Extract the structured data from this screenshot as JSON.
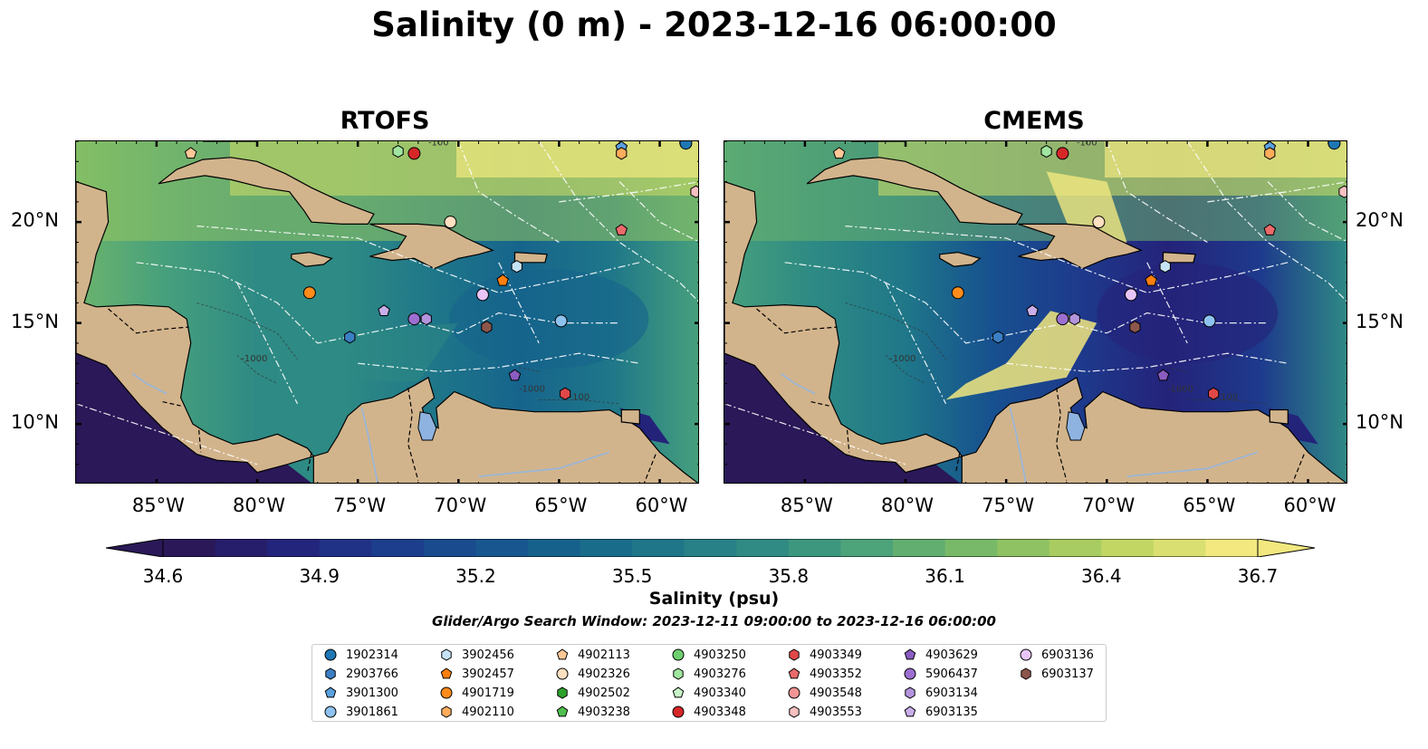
{
  "title": "Salinity (0 m) - 2023-12-16 06:00:00",
  "panels": [
    {
      "title": "RTOFS",
      "variant": "rtofs"
    },
    {
      "title": "CMEMS",
      "variant": "cmems"
    }
  ],
  "map": {
    "lon_ticks": [
      "85°W",
      "80°W",
      "75°W",
      "70°W",
      "65°W",
      "60°W"
    ],
    "lat_ticks": [
      "20°N",
      "15°N",
      "10°N"
    ],
    "lon_range": [
      -89,
      -58
    ],
    "lat_range": [
      7,
      24
    ],
    "land_color": "#d2b48c",
    "lake_color": "#8fb3e0",
    "contour_labels": [
      "-100",
      "-1000"
    ]
  },
  "colorbar": {
    "label": "Salinity (psu)",
    "min": 34.6,
    "max": 36.7,
    "ticks": [
      "34.6",
      "34.9",
      "35.2",
      "35.5",
      "35.8",
      "36.1",
      "36.4",
      "36.7"
    ],
    "colormap": "haline",
    "extend": "both"
  },
  "search_window": "Glider/Argo Search Window: 2023-12-11 09:00:00 to 2023-12-16 06:00:00",
  "legend": [
    {
      "id": "1902314",
      "marker": "circle",
      "color": "#1f77b4"
    },
    {
      "id": "2903766",
      "marker": "hexagon",
      "color": "#3b7fc4"
    },
    {
      "id": "3901300",
      "marker": "pentagon",
      "color": "#5aa0e0"
    },
    {
      "id": "3901861",
      "marker": "circle",
      "color": "#8ec3ef"
    },
    {
      "id": "3902456",
      "marker": "hexagon",
      "color": "#c6e4f7"
    },
    {
      "id": "3902457",
      "marker": "pentagon",
      "color": "#ff7f0e"
    },
    {
      "id": "4901719",
      "marker": "circle",
      "color": "#ff8c1a"
    },
    {
      "id": "4902110",
      "marker": "hexagon",
      "color": "#ffad5c"
    },
    {
      "id": "4902113",
      "marker": "pentagon",
      "color": "#ffc896"
    },
    {
      "id": "4902326",
      "marker": "circle",
      "color": "#ffe0c0"
    },
    {
      "id": "4902502",
      "marker": "hexagon",
      "color": "#2ca02c"
    },
    {
      "id": "4903238",
      "marker": "pentagon",
      "color": "#4fc04f"
    },
    {
      "id": "4903250",
      "marker": "circle",
      "color": "#6fcf6f"
    },
    {
      "id": "4903276",
      "marker": "hexagon",
      "color": "#a0e6a0"
    },
    {
      "id": "4903340",
      "marker": "pentagon",
      "color": "#c8f4c8"
    },
    {
      "id": "4903348",
      "marker": "circle",
      "color": "#d62728"
    },
    {
      "id": "4903349",
      "marker": "hexagon",
      "color": "#e04848"
    },
    {
      "id": "4903352",
      "marker": "pentagon",
      "color": "#ea6a6a"
    },
    {
      "id": "4903548",
      "marker": "circle",
      "color": "#f29494"
    },
    {
      "id": "4903553",
      "marker": "hexagon",
      "color": "#f8c0c0"
    },
    {
      "id": "4903629",
      "marker": "pentagon",
      "color": "#8a5cc0"
    },
    {
      "id": "5906437",
      "marker": "circle",
      "color": "#9c6fd0"
    },
    {
      "id": "6903134",
      "marker": "hexagon",
      "color": "#b394dd"
    },
    {
      "id": "6903135",
      "marker": "pentagon",
      "color": "#c9aeea"
    },
    {
      "id": "6903136",
      "marker": "circle",
      "color": "#e7c6f7"
    },
    {
      "id": "6903137",
      "marker": "hexagon",
      "color": "#8c564b"
    }
  ],
  "platform_positions": [
    {
      "id": "1902314",
      "lon": -58.7,
      "lat": 23.9
    },
    {
      "id": "2903766",
      "lon": -75.4,
      "lat": 14.3
    },
    {
      "id": "3901300",
      "lon": -61.9,
      "lat": 23.7
    },
    {
      "id": "3901861",
      "lon": -64.9,
      "lat": 15.1
    },
    {
      "id": "3902456",
      "lon": -67.1,
      "lat": 17.8
    },
    {
      "id": "3902457",
      "lon": -67.8,
      "lat": 17.1
    },
    {
      "id": "4901719",
      "lon": -77.4,
      "lat": 16.5
    },
    {
      "id": "4902110",
      "lon": -61.9,
      "lat": 23.4
    },
    {
      "id": "4902113",
      "lon": -83.3,
      "lat": 23.4
    },
    {
      "id": "4902326",
      "lon": -70.4,
      "lat": 20.0
    },
    {
      "id": "4903276",
      "lon": -73.0,
      "lat": 23.5
    },
    {
      "id": "4903348",
      "lon": -72.2,
      "lat": 23.4
    },
    {
      "id": "4903349",
      "lon": -64.7,
      "lat": 11.5
    },
    {
      "id": "4903352",
      "lon": -61.9,
      "lat": 19.6
    },
    {
      "id": "4903553",
      "lon": -58.2,
      "lat": 21.5
    },
    {
      "id": "4903629",
      "lon": -67.2,
      "lat": 12.4
    },
    {
      "id": "5906437",
      "lon": -72.2,
      "lat": 15.2
    },
    {
      "id": "6903134",
      "lon": -71.6,
      "lat": 15.2
    },
    {
      "id": "6903135",
      "lon": -73.7,
      "lat": 15.6
    },
    {
      "id": "6903136",
      "lon": -68.8,
      "lat": 16.4
    },
    {
      "id": "6903137",
      "lon": -68.6,
      "lat": 14.8
    }
  ]
}
